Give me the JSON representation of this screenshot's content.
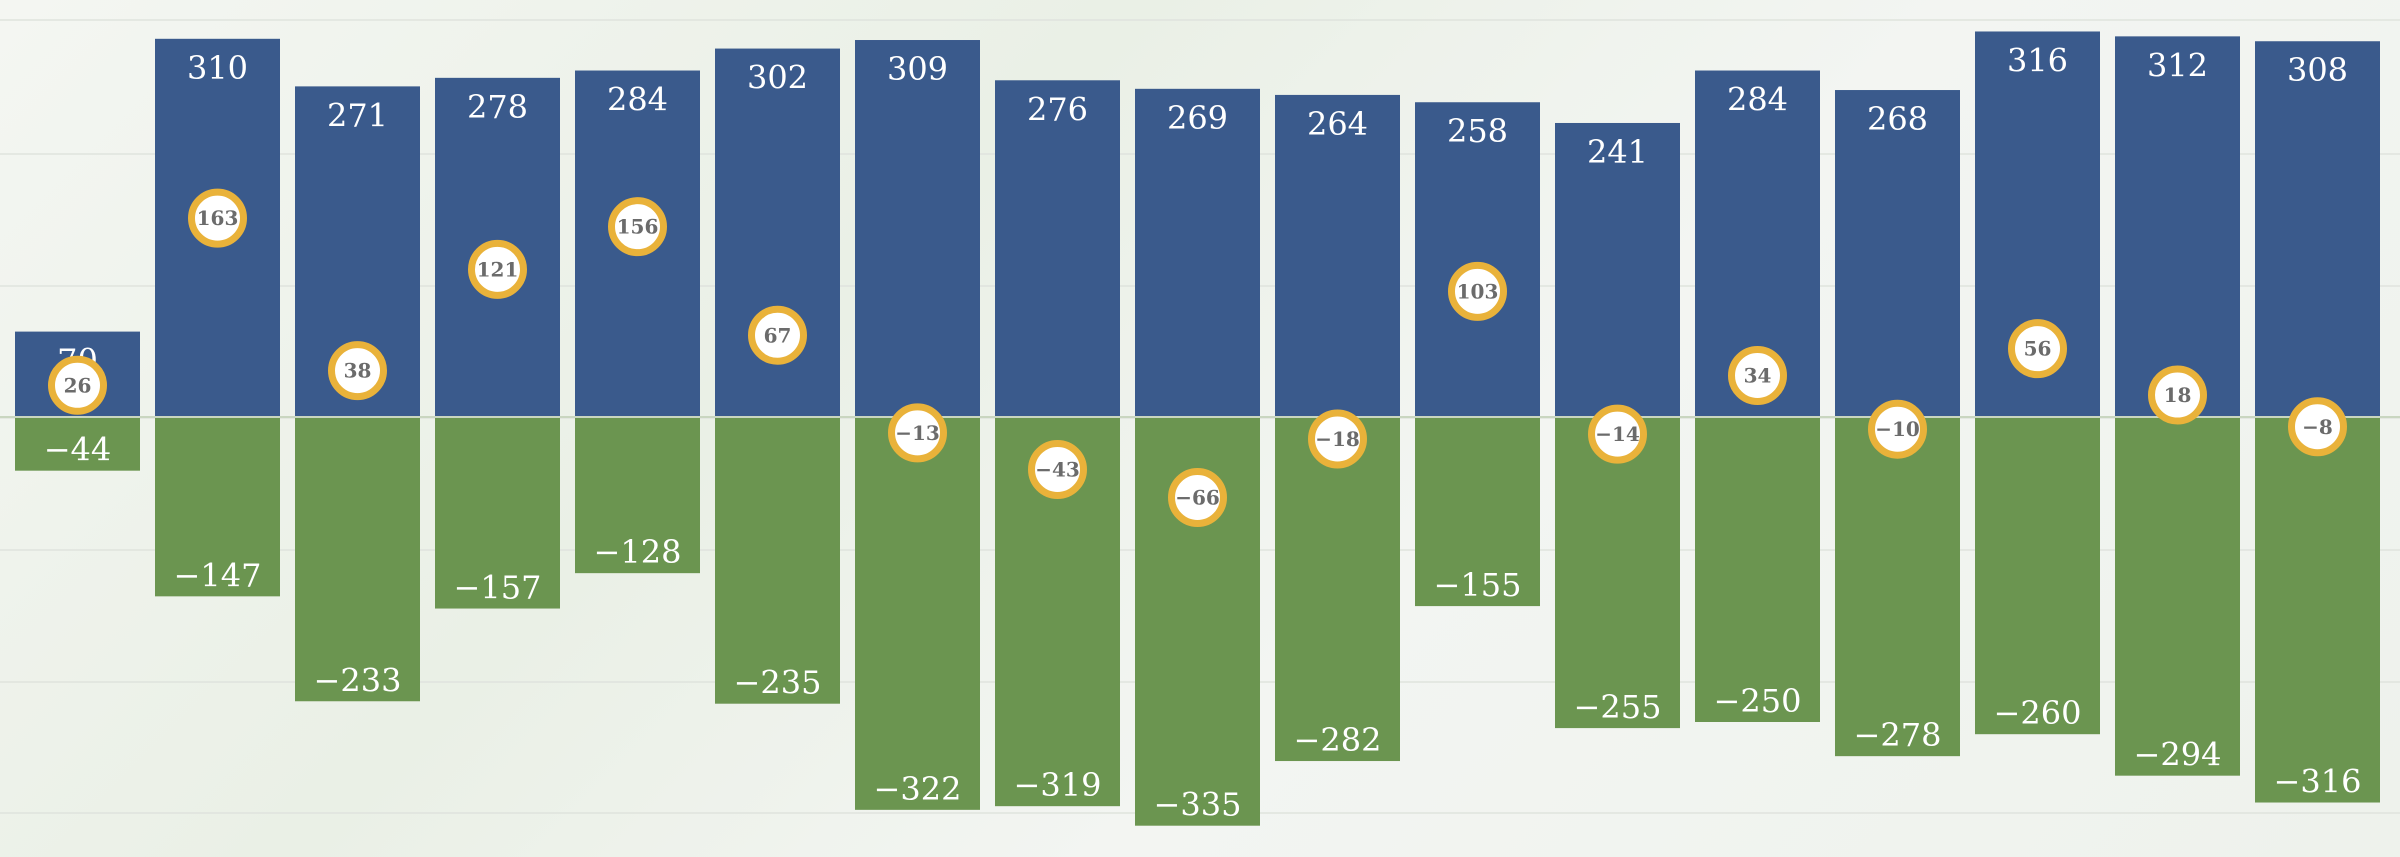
{
  "chart_data": {
    "type": "bar",
    "stacking": "diverging",
    "grid": true,
    "ylim": [
      -335,
      316
    ],
    "categories": [
      "",
      "",
      "",
      "",
      "",
      "",
      "",
      "",
      "",
      "",
      "",
      "",
      "",
      "",
      "",
      "",
      ""
    ],
    "series": [
      {
        "values": [
          70,
          310,
          271,
          278,
          284,
          302,
          309,
          276,
          269,
          264,
          258,
          241,
          284,
          268,
          316,
          312,
          308
        ],
        "color": "#3a5a8c"
      },
      {
        "values": [
          -44,
          -147,
          -233,
          -157,
          -128,
          -235,
          -322,
          -319,
          -335,
          -282,
          -155,
          -255,
          -250,
          -278,
          -260,
          -294,
          -316
        ],
        "color": "#6b9550"
      }
    ],
    "net_markers": {
      "values": [
        26,
        163,
        38,
        121,
        156,
        67,
        -13,
        -43,
        -66,
        -18,
        103,
        -14,
        34,
        -10,
        56,
        18,
        -8
      ],
      "ring_color": "#e9b23a",
      "fill_color": "#ffffff"
    },
    "labels": {
      "positive": [
        "70",
        "310",
        "271",
        "278",
        "284",
        "302",
        "309",
        "276",
        "269",
        "264",
        "258",
        "241",
        "284",
        "268",
        "316",
        "312",
        "308"
      ],
      "negative": [
        "−44",
        "−147",
        "−233",
        "−157",
        "−128",
        "−235",
        "−322",
        "−319",
        "−335",
        "−282",
        "−155",
        "−255",
        "−250",
        "−278",
        "−260",
        "−294",
        "−316"
      ],
      "net": [
        "26",
        "163",
        "38",
        "121",
        "156",
        "67",
        "−13",
        "−43",
        "−66",
        "−18",
        "103",
        "−14",
        "34",
        "−10",
        "56",
        "18",
        "−8"
      ]
    }
  }
}
